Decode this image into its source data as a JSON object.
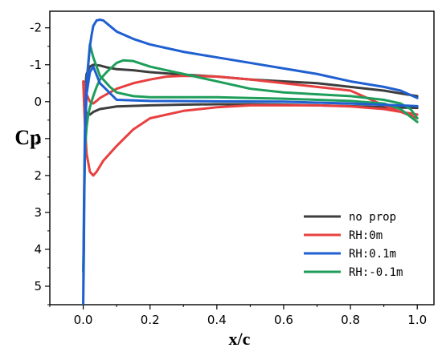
{
  "chart_data": {
    "type": "line",
    "xlabel": "x/c",
    "ylabel": "Cp",
    "xlim": [
      -0.1,
      1.05
    ],
    "ylim": [
      -2.45,
      5.5
    ],
    "y_inverted": true,
    "grid": false,
    "legend_position": "bottom-right",
    "x_ticks": [
      0.0,
      0.2,
      0.4,
      0.6,
      0.8,
      1.0
    ],
    "x_tick_labels": [
      "0.0",
      "0.2",
      "0.4",
      "0.6",
      "0.8",
      "1.0"
    ],
    "y_ticks": [
      -2,
      -1,
      0,
      1,
      2,
      3,
      4,
      5
    ],
    "y_tick_labels": [
      "-2",
      "-1",
      "0",
      "1",
      "2",
      "3",
      "4",
      "5"
    ],
    "series": [
      {
        "name": "no prop",
        "color": "#3d3d3d",
        "x": [
          1.0,
          0.9,
          0.8,
          0.7,
          0.6,
          0.5,
          0.4,
          0.3,
          0.2,
          0.15,
          0.1,
          0.07,
          0.05,
          0.03,
          0.02,
          0.01,
          0.005,
          0.003,
          0.005,
          0.01,
          0.02,
          0.03,
          0.05,
          0.1,
          0.2,
          0.3,
          0.4,
          0.5,
          0.6,
          0.7,
          0.8,
          0.9,
          1.0
        ],
        "y": [
          -0.15,
          -0.3,
          -0.4,
          -0.5,
          -0.55,
          -0.6,
          -0.68,
          -0.73,
          -0.8,
          -0.85,
          -0.88,
          -0.93,
          -0.98,
          -1.0,
          -0.95,
          -0.75,
          -0.3,
          0.1,
          0.25,
          0.3,
          0.35,
          0.28,
          0.2,
          0.13,
          0.1,
          0.08,
          0.07,
          0.07,
          0.08,
          0.1,
          0.12,
          0.15,
          0.17
        ]
      },
      {
        "name": "RH:0m",
        "color": "#e84040",
        "x": [
          1.0,
          0.9,
          0.8,
          0.7,
          0.6,
          0.5,
          0.4,
          0.3,
          0.25,
          0.2,
          0.15,
          0.1,
          0.07,
          0.05,
          0.04,
          0.03,
          0.02,
          0.01,
          0.005,
          0.0,
          0.005,
          0.01,
          0.02,
          0.03,
          0.04,
          0.06,
          0.1,
          0.15,
          0.2,
          0.3,
          0.4,
          0.5,
          0.6,
          0.7,
          0.8,
          0.9,
          1.0
        ],
        "y": [
          0.45,
          0.1,
          -0.3,
          -0.4,
          -0.5,
          -0.6,
          -0.68,
          -0.7,
          -0.68,
          -0.6,
          -0.5,
          -0.35,
          -0.2,
          -0.1,
          -0.02,
          0.05,
          0.0,
          -0.2,
          -0.45,
          -0.55,
          0.6,
          1.4,
          1.9,
          2.0,
          1.9,
          1.6,
          1.2,
          0.75,
          0.45,
          0.25,
          0.15,
          0.1,
          0.1,
          0.1,
          0.13,
          0.2,
          0.35
        ]
      },
      {
        "name": "RH:0.1m",
        "color": "#1f5fd1",
        "x": [
          1.0,
          0.95,
          0.9,
          0.8,
          0.7,
          0.6,
          0.5,
          0.4,
          0.3,
          0.2,
          0.15,
          0.1,
          0.08,
          0.06,
          0.05,
          0.04,
          0.03,
          0.025,
          0.02,
          0.015,
          0.01,
          0.007,
          0.005,
          0.003,
          0.002,
          0.0,
          0.002,
          0.005,
          0.01,
          0.02,
          0.03,
          0.05,
          0.1,
          0.2,
          0.4,
          0.6,
          0.8,
          1.0
        ],
        "y": [
          -0.1,
          -0.3,
          -0.4,
          -0.55,
          -0.75,
          -0.9,
          -1.05,
          -1.2,
          -1.35,
          -1.55,
          -1.7,
          -1.9,
          -2.05,
          -2.2,
          -2.22,
          -2.2,
          -2.05,
          -1.8,
          -1.5,
          -1.0,
          -0.5,
          0.0,
          1.0,
          2.5,
          4.0,
          5.5,
          3.0,
          0.8,
          -0.2,
          -0.8,
          -0.95,
          -0.5,
          -0.05,
          -0.02,
          -0.01,
          0.0,
          0.05,
          0.12
        ]
      },
      {
        "name": "RH:-0.1m",
        "color": "#1e9e5a",
        "x": [
          1.0,
          0.98,
          0.95,
          0.9,
          0.8,
          0.7,
          0.6,
          0.5,
          0.4,
          0.3,
          0.25,
          0.2,
          0.15,
          0.12,
          0.1,
          0.07,
          0.05,
          0.04,
          0.03,
          0.025,
          0.02,
          0.015,
          0.01,
          0.005,
          0.003,
          0.002,
          0.0,
          0.005,
          0.01,
          0.02,
          0.03,
          0.05,
          0.08,
          0.1,
          0.15,
          0.2,
          0.3,
          0.4,
          0.5,
          0.6,
          0.7,
          0.8,
          0.9,
          0.95,
          1.0
        ],
        "y": [
          0.45,
          0.2,
          0.05,
          -0.05,
          -0.15,
          -0.2,
          -0.25,
          -0.35,
          -0.55,
          -0.75,
          -0.85,
          -0.95,
          -1.1,
          -1.12,
          -1.05,
          -0.8,
          -0.6,
          -0.4,
          -0.15,
          0.0,
          0.15,
          0.35,
          0.7,
          1.3,
          2.5,
          3.8,
          4.6,
          1.5,
          -0.5,
          -1.55,
          -1.2,
          -0.7,
          -0.4,
          -0.25,
          -0.15,
          -0.12,
          -0.12,
          -0.12,
          -0.1,
          -0.08,
          -0.05,
          -0.02,
          0.05,
          0.2,
          0.55
        ]
      }
    ]
  }
}
